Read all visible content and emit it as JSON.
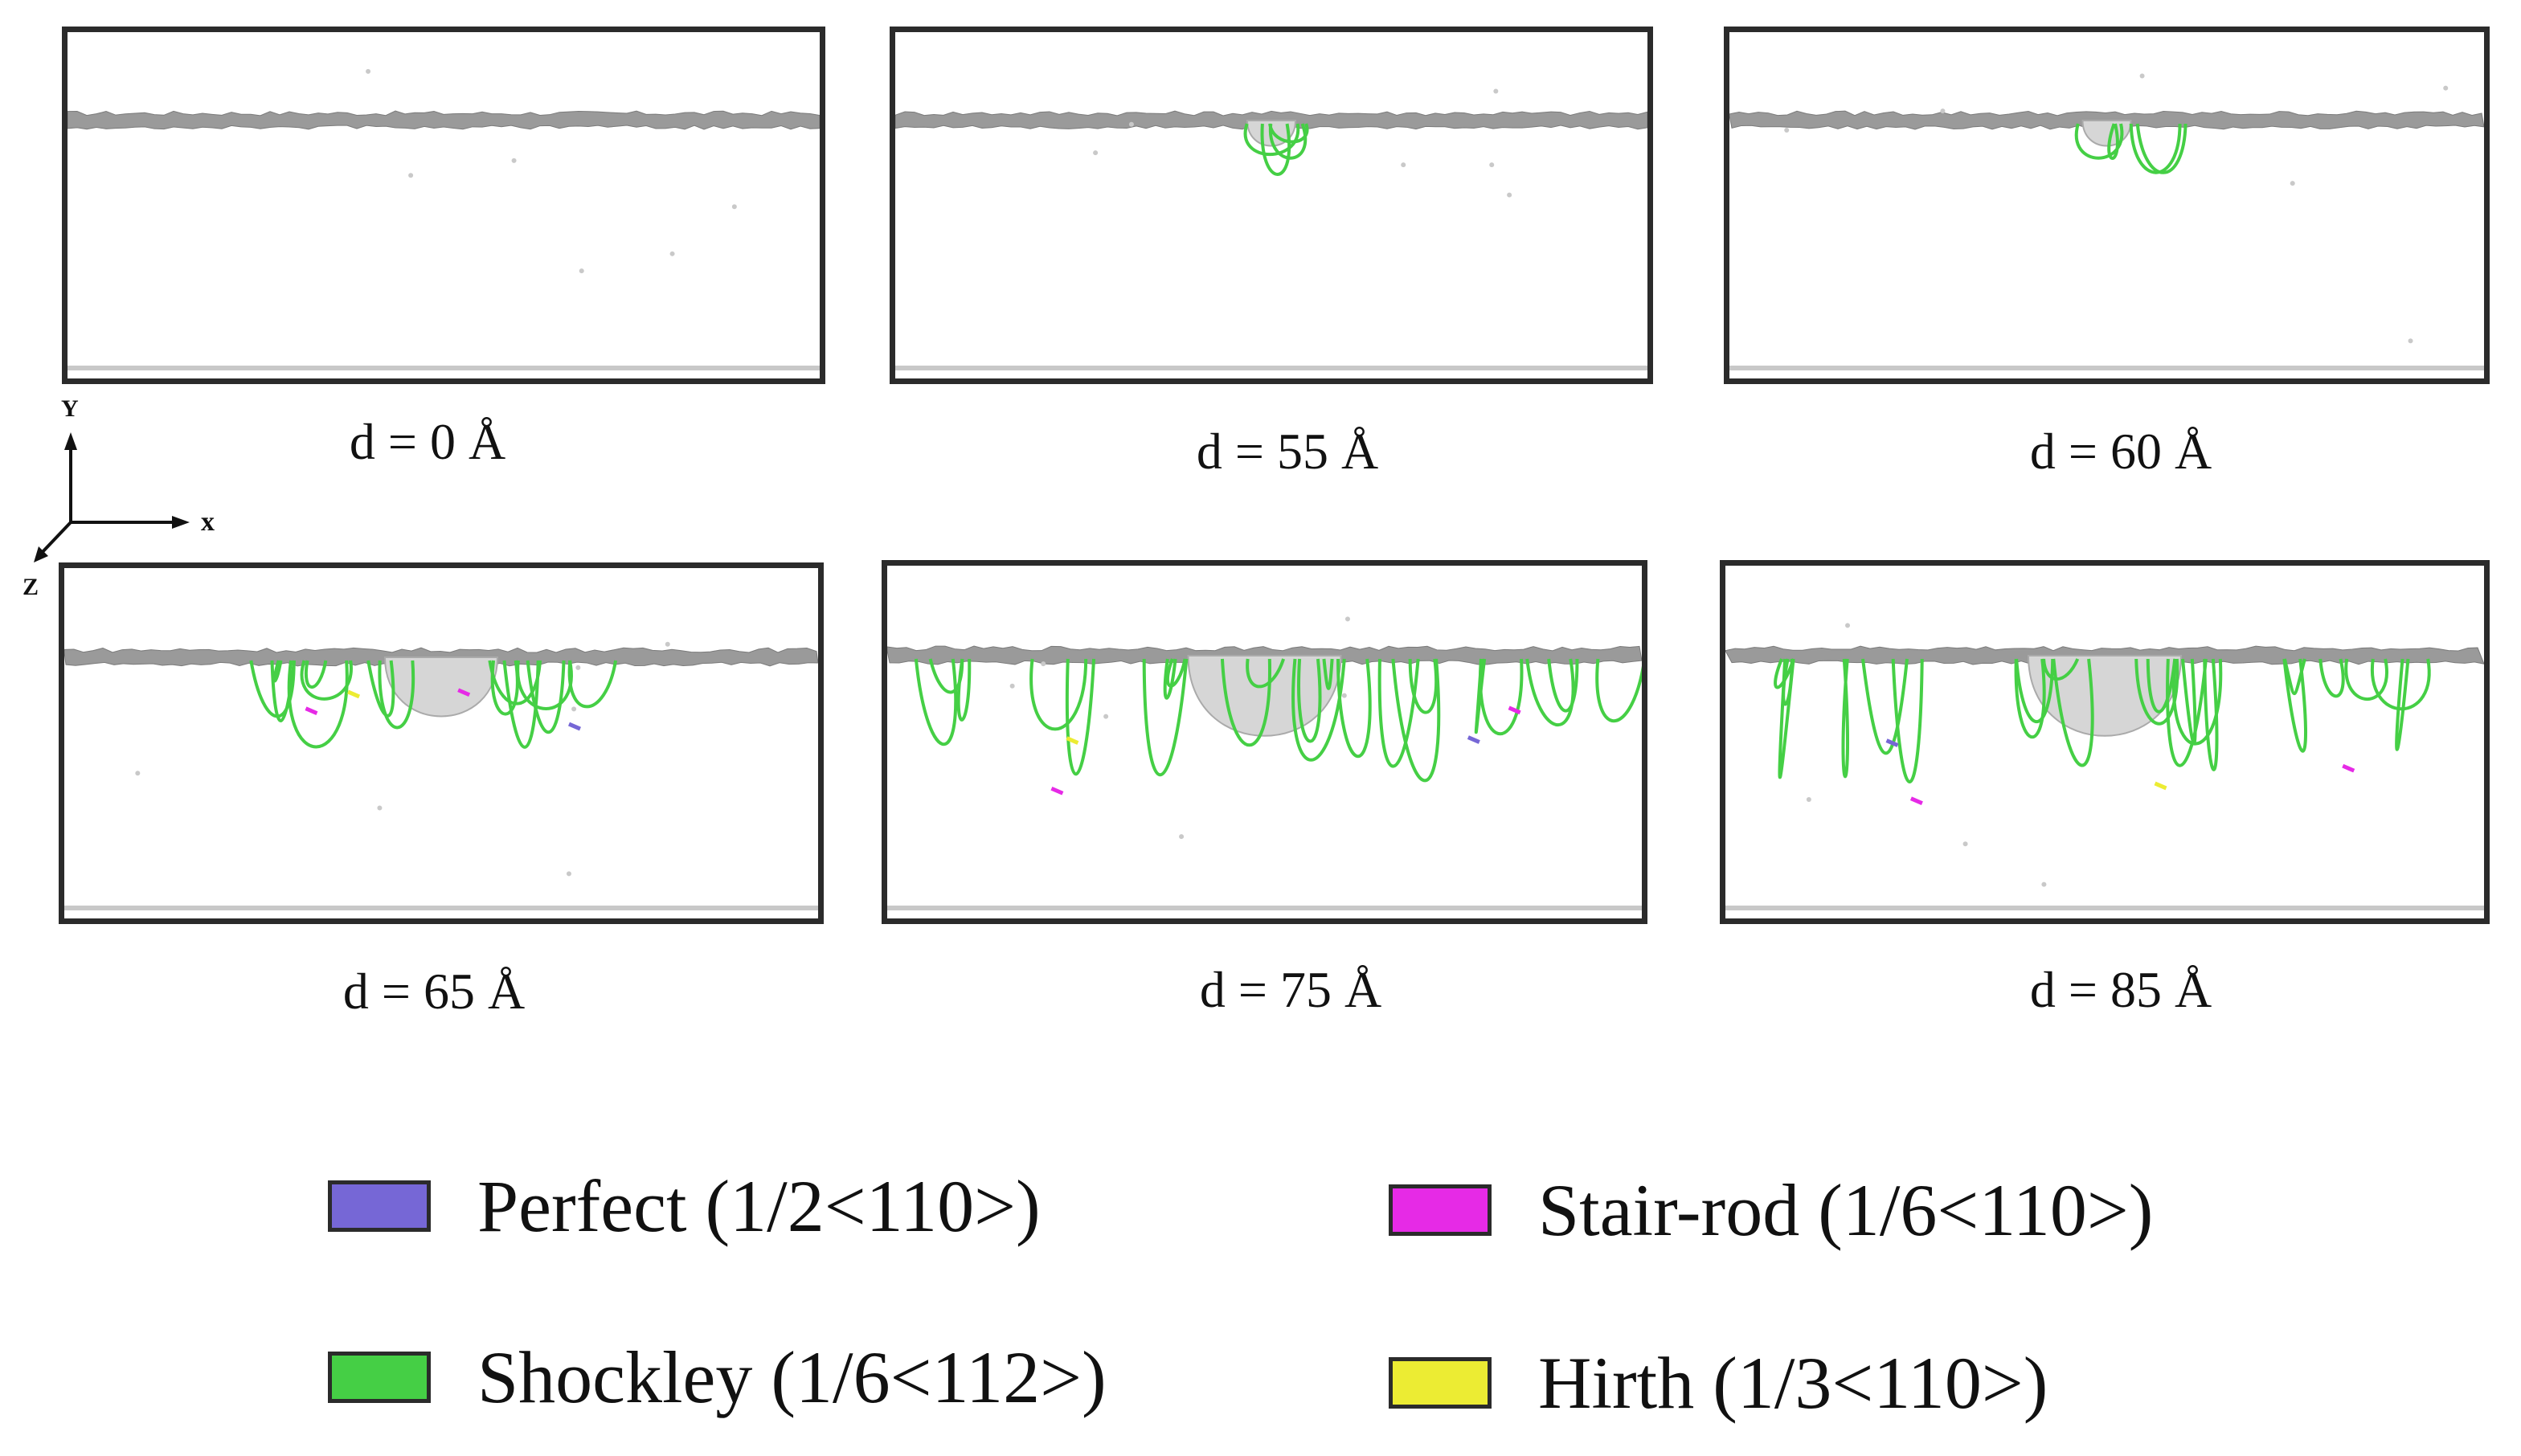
{
  "panels": [
    {
      "caption": "d = 0 Å",
      "depth": 0,
      "dislocation_activity": "none"
    },
    {
      "caption": "d = 55 Å",
      "depth": 55,
      "dislocation_activity": "small"
    },
    {
      "caption": "d = 60 Å",
      "depth": 60,
      "dislocation_activity": "small"
    },
    {
      "caption": "d = 65 Å",
      "depth": 65,
      "dislocation_activity": "medium"
    },
    {
      "caption": "d = 75 Å",
      "depth": 75,
      "dislocation_activity": "large"
    },
    {
      "caption": "d = 85 Å",
      "depth": 85,
      "dislocation_activity": "large"
    }
  ],
  "axes": {
    "y": "Y",
    "x": "x",
    "z": "Z"
  },
  "legend": [
    {
      "label": "Perfect (1/2<110>)",
      "color": "#7667d6"
    },
    {
      "label": "Stair-rod (1/6<110>)",
      "color": "#e62ae6"
    },
    {
      "label": "Shockley (1/6<112>)",
      "color": "#45cf45"
    },
    {
      "label": "Hirth (1/3<110>)",
      "color": "#ecec33"
    }
  ]
}
